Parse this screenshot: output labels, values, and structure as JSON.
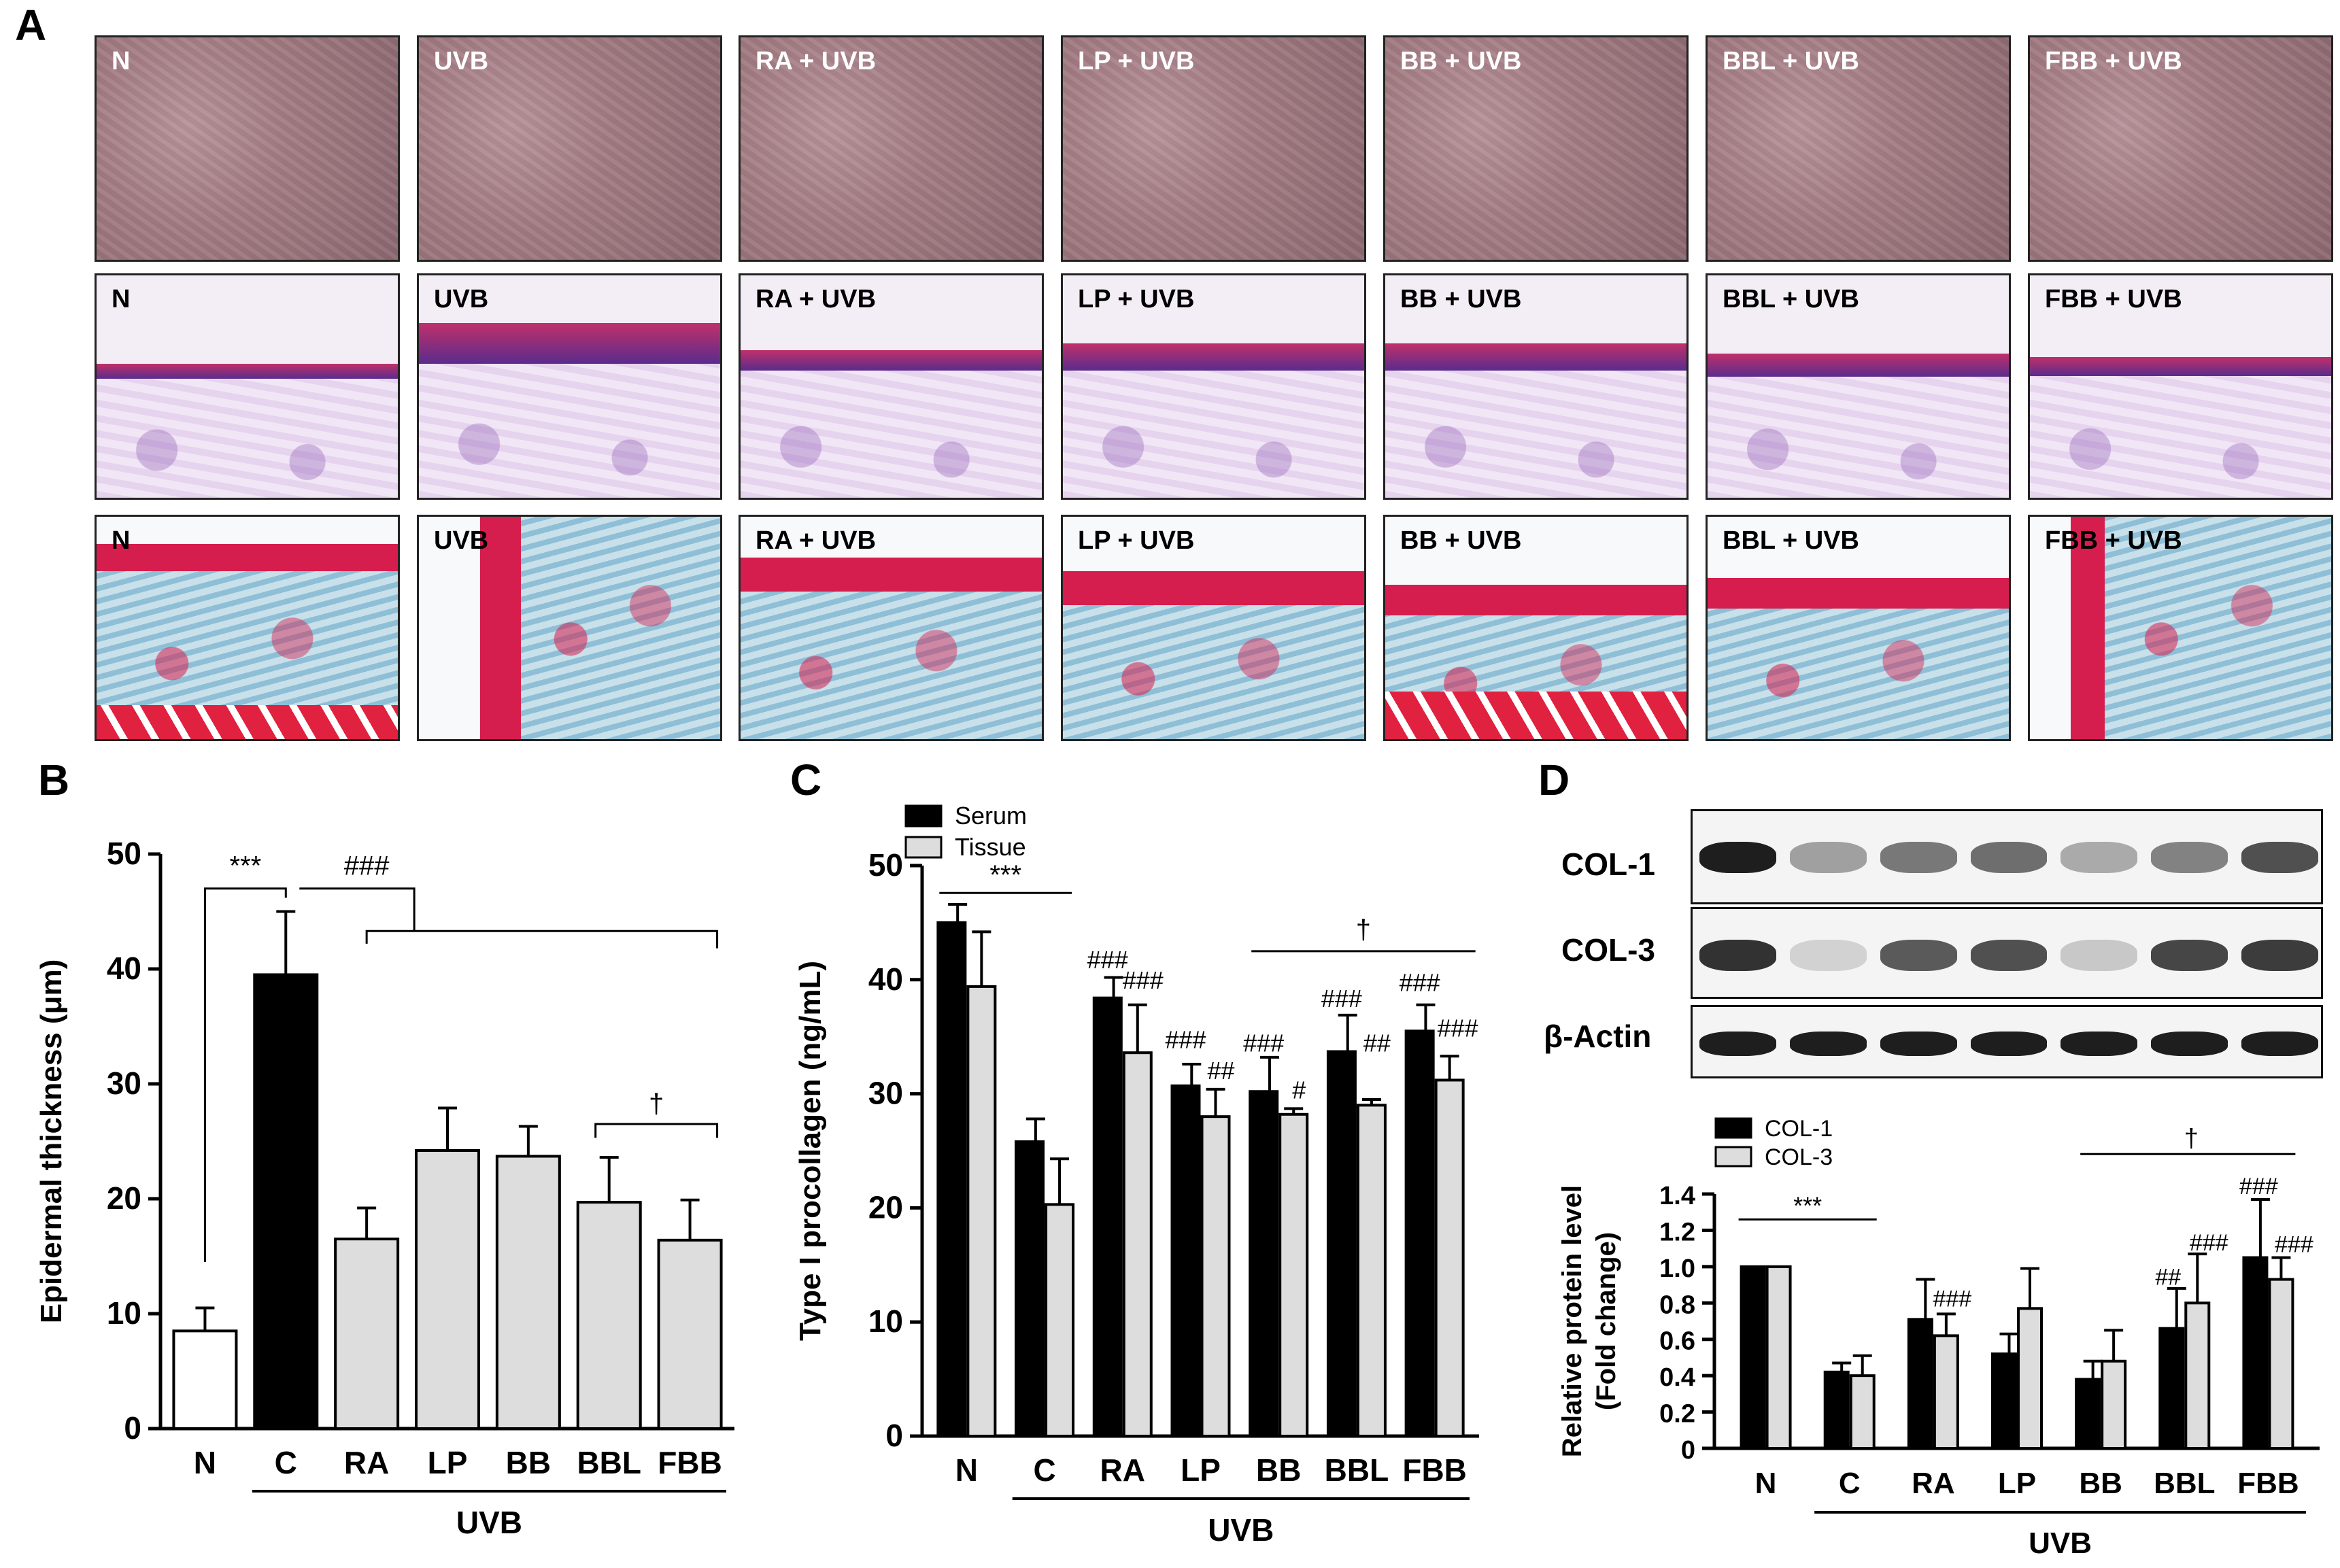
{
  "panel_letters": {
    "a": "A",
    "b": "B",
    "c": "C",
    "d": "D"
  },
  "groups": [
    "N",
    "UVB",
    "RA + UVB",
    "LP + UVB",
    "BB + UVB",
    "BBL + UVB",
    "FBB + UVB"
  ],
  "western_blot": {
    "labels": [
      "COL-1",
      "COL-3",
      "β-Actin"
    ],
    "band_intensity": {
      "COL-1": [
        1.0,
        0.35,
        0.55,
        0.6,
        0.3,
        0.5,
        0.75
      ],
      "COL-3": [
        0.9,
        0.1,
        0.7,
        0.75,
        0.15,
        0.8,
        0.85
      ],
      "β-Actin": [
        1.0,
        1.0,
        1.0,
        1.0,
        1.0,
        1.0,
        1.0
      ]
    }
  },
  "chart_data": [
    {
      "panel": "B",
      "type": "bar",
      "categories": [
        "N",
        "C",
        "RA",
        "LP",
        "BB",
        "BBL",
        "FBB"
      ],
      "series": [
        {
          "values": [
            8.5,
            39.5,
            16.5,
            24.2,
            23.7,
            19.7,
            16.4
          ],
          "errors": [
            2.0,
            5.5,
            2.7,
            3.7,
            2.6,
            3.9,
            3.5
          ]
        }
      ],
      "bar_colors": [
        "#ffffff",
        "#000000",
        "#dddddd",
        "#dddddd",
        "#dddddd",
        "#dddddd",
        "#dddddd"
      ],
      "ylabel": "Epidermal thickness (μm)",
      "ylim": [
        0,
        50
      ],
      "yticks": [
        "0",
        "10",
        "20",
        "30",
        "40",
        "50"
      ],
      "group_label": "UVB",
      "annotations": [
        "***",
        "###",
        "†"
      ]
    },
    {
      "panel": "C",
      "type": "bar",
      "categories": [
        "N",
        "C",
        "RA",
        "LP",
        "BB",
        "BBL",
        "FBB"
      ],
      "series": [
        {
          "name": "Serum",
          "color": "#000000",
          "values": [
            45.0,
            25.8,
            38.4,
            30.7,
            30.2,
            33.7,
            35.5
          ],
          "errors": [
            1.6,
            2.0,
            1.8,
            1.9,
            3.0,
            3.2,
            2.3
          ]
        },
        {
          "name": "Tissue",
          "color": "#dddddd",
          "values": [
            39.4,
            20.3,
            33.6,
            28.0,
            28.2,
            29.0,
            31.2
          ],
          "errors": [
            4.8,
            4.0,
            4.2,
            2.4,
            0.5,
            0.5,
            2.1
          ]
        }
      ],
      "ylabel": "Type I procollagen (ng/mL)",
      "ylim": [
        0,
        50
      ],
      "yticks": [
        "0",
        "10",
        "20",
        "30",
        "40",
        "50"
      ],
      "group_label": "UVB",
      "annotations": [
        "***",
        "†",
        "###",
        "###",
        "###",
        "##",
        "###",
        "#",
        "###",
        "##",
        "###",
        "###"
      ]
    },
    {
      "panel": "D",
      "type": "bar",
      "categories": [
        "N",
        "C",
        "RA",
        "LP",
        "BB",
        "BBL",
        "FBB"
      ],
      "series": [
        {
          "name": "COL-1",
          "color": "#000000",
          "values": [
            1.0,
            0.42,
            0.71,
            0.52,
            0.38,
            0.66,
            1.05
          ],
          "errors": [
            0.0,
            0.05,
            0.22,
            0.11,
            0.1,
            0.22,
            0.32
          ]
        },
        {
          "name": "COL-3",
          "color": "#dddddd",
          "values": [
            1.0,
            0.4,
            0.62,
            0.77,
            0.48,
            0.8,
            0.93
          ],
          "errors": [
            0.0,
            0.11,
            0.12,
            0.22,
            0.17,
            0.27,
            0.12
          ]
        }
      ],
      "ylabel_line1": "Relative protein level",
      "ylabel_line2": "(Fold change)",
      "ylim": [
        0,
        1.4
      ],
      "yticks": [
        "0",
        "0.2",
        "0.4",
        "0.6",
        "0.8",
        "1.0",
        "1.2",
        "1.4"
      ],
      "group_label": "UVB",
      "annotations": [
        "***",
        "†",
        "###",
        "##",
        "###",
        "###",
        "###"
      ]
    }
  ]
}
